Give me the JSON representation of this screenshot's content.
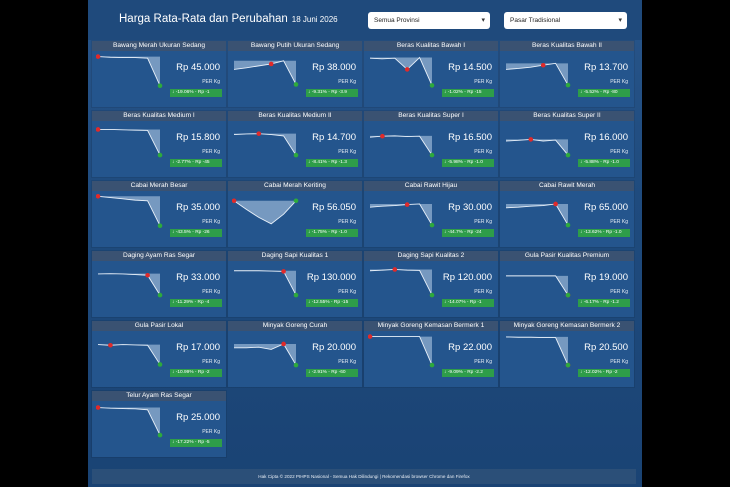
{
  "header": {
    "title": "Harga Rata-Rata dan Perubahan",
    "date": "18 Juni 2026",
    "province_select": "Semua Provinsi",
    "market_select": "Pasar Tradisional"
  },
  "cards": [
    {
      "name": "Bawang Merah Ukuran Sedang",
      "price": "Rp 45.000",
      "unit": "PER Kg",
      "change": "↓ -19.06% - Rp -1",
      "trend": [
        0.95,
        0.93,
        0.92,
        0.92,
        0.9,
        0.04
      ],
      "peak": 0
    },
    {
      "name": "Bawang Putih Ukuran Sedang",
      "price": "Rp 38.000",
      "unit": "PER Kg",
      "change": "↓ -9.31% - Rp -3.9",
      "trend": [
        0.55,
        0.6,
        0.66,
        0.72,
        0.82,
        0.08
      ],
      "peak": 3
    },
    {
      "name": "Beras Kualitas Bawah I",
      "price": "Rp 14.500",
      "unit": "PER Kg",
      "change": "↓ -1.02% - Rp -15",
      "trend": [
        0.9,
        0.88,
        0.9,
        0.55,
        0.92,
        0.05
      ],
      "peak": 3
    },
    {
      "name": "Beras Kualitas Bawah II",
      "price": "Rp 13.700",
      "unit": "PER Kg",
      "change": "↓ -5.52% - Rp -80",
      "trend": [
        0.55,
        0.58,
        0.62,
        0.68,
        0.74,
        0.06
      ],
      "peak": 3
    },
    {
      "name": "Beras Kualitas Medium I",
      "price": "Rp 15.800",
      "unit": "PER Kg",
      "change": "↓ -2.77% - Rp -45",
      "trend": [
        0.86,
        0.86,
        0.85,
        0.84,
        0.83,
        0.06
      ],
      "peak": 0
    },
    {
      "name": "Beras Kualitas Medium II",
      "price": "Rp 14.700",
      "unit": "PER Kg",
      "change": "↓ -8.41% - Rp -1.3",
      "trend": [
        0.7,
        0.72,
        0.73,
        0.7,
        0.66,
        0.06
      ],
      "peak": 2
    },
    {
      "name": "Beras Kualitas Super I",
      "price": "Rp 16.500",
      "unit": "PER Kg",
      "change": "↓ -5.98% - Rp -1.0",
      "trend": [
        0.62,
        0.65,
        0.66,
        0.64,
        0.65,
        0.06
      ],
      "peak": 1
    },
    {
      "name": "Beras Kualitas Super II",
      "price": "Rp 16.000",
      "unit": "PER Kg",
      "change": "↓ -5.88% - Rp -1.0",
      "trend": [
        0.5,
        0.52,
        0.55,
        0.5,
        0.53,
        0.06
      ],
      "peak": 2
    },
    {
      "name": "Cabai Merah Besar",
      "price": "Rp 35.000",
      "unit": "PER Kg",
      "change": "↓ -43.5% - Rp -26",
      "trend": [
        0.96,
        0.92,
        0.88,
        0.84,
        0.82,
        0.04
      ],
      "peak": 0
    },
    {
      "name": "Cabai Merah Keriting",
      "price": "Rp 56.050",
      "unit": "PER Kg",
      "change": "↓ -1.75% - Rp -1.0",
      "trend": [
        0.82,
        0.55,
        0.3,
        0.1,
        0.4,
        0.82
      ],
      "peak": 0
    },
    {
      "name": "Cabai Rawit Hijau",
      "price": "Rp 30.000",
      "unit": "PER Kg",
      "change": "↓ -44.7% - Rp -24",
      "trend": [
        0.62,
        0.65,
        0.67,
        0.7,
        0.72,
        0.06
      ],
      "peak": 3
    },
    {
      "name": "Cabai Rawit Merah",
      "price": "Rp 65.000",
      "unit": "PER Kg",
      "change": "↓ -13.62% - Rp -1.0",
      "trend": [
        0.6,
        0.62,
        0.65,
        0.67,
        0.72,
        0.06
      ],
      "peak": 4
    },
    {
      "name": "Daging Ayam Ras Segar",
      "price": "Rp 33.000",
      "unit": "PER Kg",
      "change": "↓ -11.29% - Rp -4",
      "trend": [
        0.72,
        0.73,
        0.72,
        0.7,
        0.68,
        0.06
      ],
      "peak": 4
    },
    {
      "name": "Daging Sapi Kualitas 1",
      "price": "Rp 130.000",
      "unit": "PER Kg",
      "change": "↓ -12.55% - Rp -15",
      "trend": [
        0.82,
        0.82,
        0.82,
        0.81,
        0.8,
        0.06
      ],
      "peak": 4
    },
    {
      "name": "Daging Sapi Kualitas 2",
      "price": "Rp 120.000",
      "unit": "PER Kg",
      "change": "↓ -14.07% - Rp -1",
      "trend": [
        0.82,
        0.84,
        0.86,
        0.84,
        0.83,
        0.06
      ],
      "peak": 2
    },
    {
      "name": "Gula Pasir Kualitas Premium",
      "price": "Rp 19.000",
      "unit": "PER Kg",
      "change": "↓ -6.17% - Rp -1.2",
      "trend": [
        0.66,
        0.66,
        0.66,
        0.66,
        0.66,
        0.06
      ],
      "peak": 5
    },
    {
      "name": "Gula Pasir Lokal",
      "price": "Rp 17.000",
      "unit": "PER Kg",
      "change": "↓ -10.99% - Rp -2",
      "trend": [
        0.7,
        0.68,
        0.7,
        0.69,
        0.68,
        0.08
      ],
      "peak": 1
    },
    {
      "name": "Minyak Goreng Curah",
      "price": "Rp 20.000",
      "unit": "PER Kg",
      "change": "↓ -2.91% - Rp -60",
      "trend": [
        0.6,
        0.6,
        0.62,
        0.55,
        0.72,
        0.06
      ],
      "peak": 4
    },
    {
      "name": "Minyak Goreng Kemasan Bermerk 1",
      "price": "Rp 22.000",
      "unit": "PER Kg",
      "change": "↓ -9.09% - Rp -2.2",
      "trend": [
        0.95,
        0.95,
        0.95,
        0.95,
        0.95,
        0.06
      ],
      "peak": 0
    },
    {
      "name": "Minyak Goreng Kemasan Bermerk 2",
      "price": "Rp 20.500",
      "unit": "PER Kg",
      "change": "↓ -12.02% - Rp -2",
      "trend": [
        0.94,
        0.93,
        0.93,
        0.92,
        0.92,
        0.06
      ],
      "peak": 5
    },
    {
      "name": "Telur Ayam Ras Segar",
      "price": "Rp 25.000",
      "unit": "PER Kg",
      "change": "↓ -17.22% - Rp -5",
      "trend": [
        0.92,
        0.9,
        0.89,
        0.88,
        0.85,
        0.06
      ],
      "peak": 0
    }
  ],
  "footer": "Hak Cipta © 2022 PIHPS Nasional - Semua Hak Dilindungi | Rekomendasi browser Chrome dan Firefox",
  "colors": {
    "peak_dot": "#e02a2a",
    "last_dot": "#2eaa3c",
    "change_badge": "#2e9d49"
  }
}
